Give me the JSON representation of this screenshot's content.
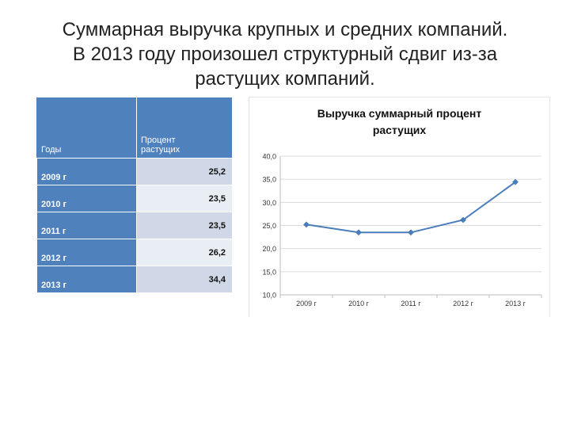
{
  "slide": {
    "title_line1": "Суммарная выручка крупных и средних компаний.",
    "title_line2": "В 2013 году произошел структурный сдвиг из-за",
    "title_line3": "растущих компаний."
  },
  "table": {
    "header_years": "Годы",
    "header_percent_line1": "Процент",
    "header_percent_line2": "растущих",
    "rows": [
      {
        "year": "2009 г",
        "value": "25,2"
      },
      {
        "year": "2010 г",
        "value": "23,5"
      },
      {
        "year": "2011 г",
        "value": "23,5"
      },
      {
        "year": "2012 г",
        "value": "26,2"
      },
      {
        "year": "2013 г",
        "value": "34,4"
      }
    ]
  },
  "chart_data": {
    "type": "line",
    "title_line1": "Выручка суммарный процент",
    "title_line2": "растущих",
    "categories": [
      "2009 г",
      "2010 г",
      "2011 г",
      "2012 г",
      "2013 г"
    ],
    "series": [
      {
        "values": [
          25.2,
          23.5,
          23.5,
          26.2,
          34.4
        ]
      }
    ],
    "ylim": [
      10,
      40
    ],
    "yticks": [
      "10,0",
      "15,0",
      "20,0",
      "25,0",
      "30,0",
      "35,0",
      "40,0"
    ],
    "grid": true,
    "line_color": "#4a7ebb"
  }
}
